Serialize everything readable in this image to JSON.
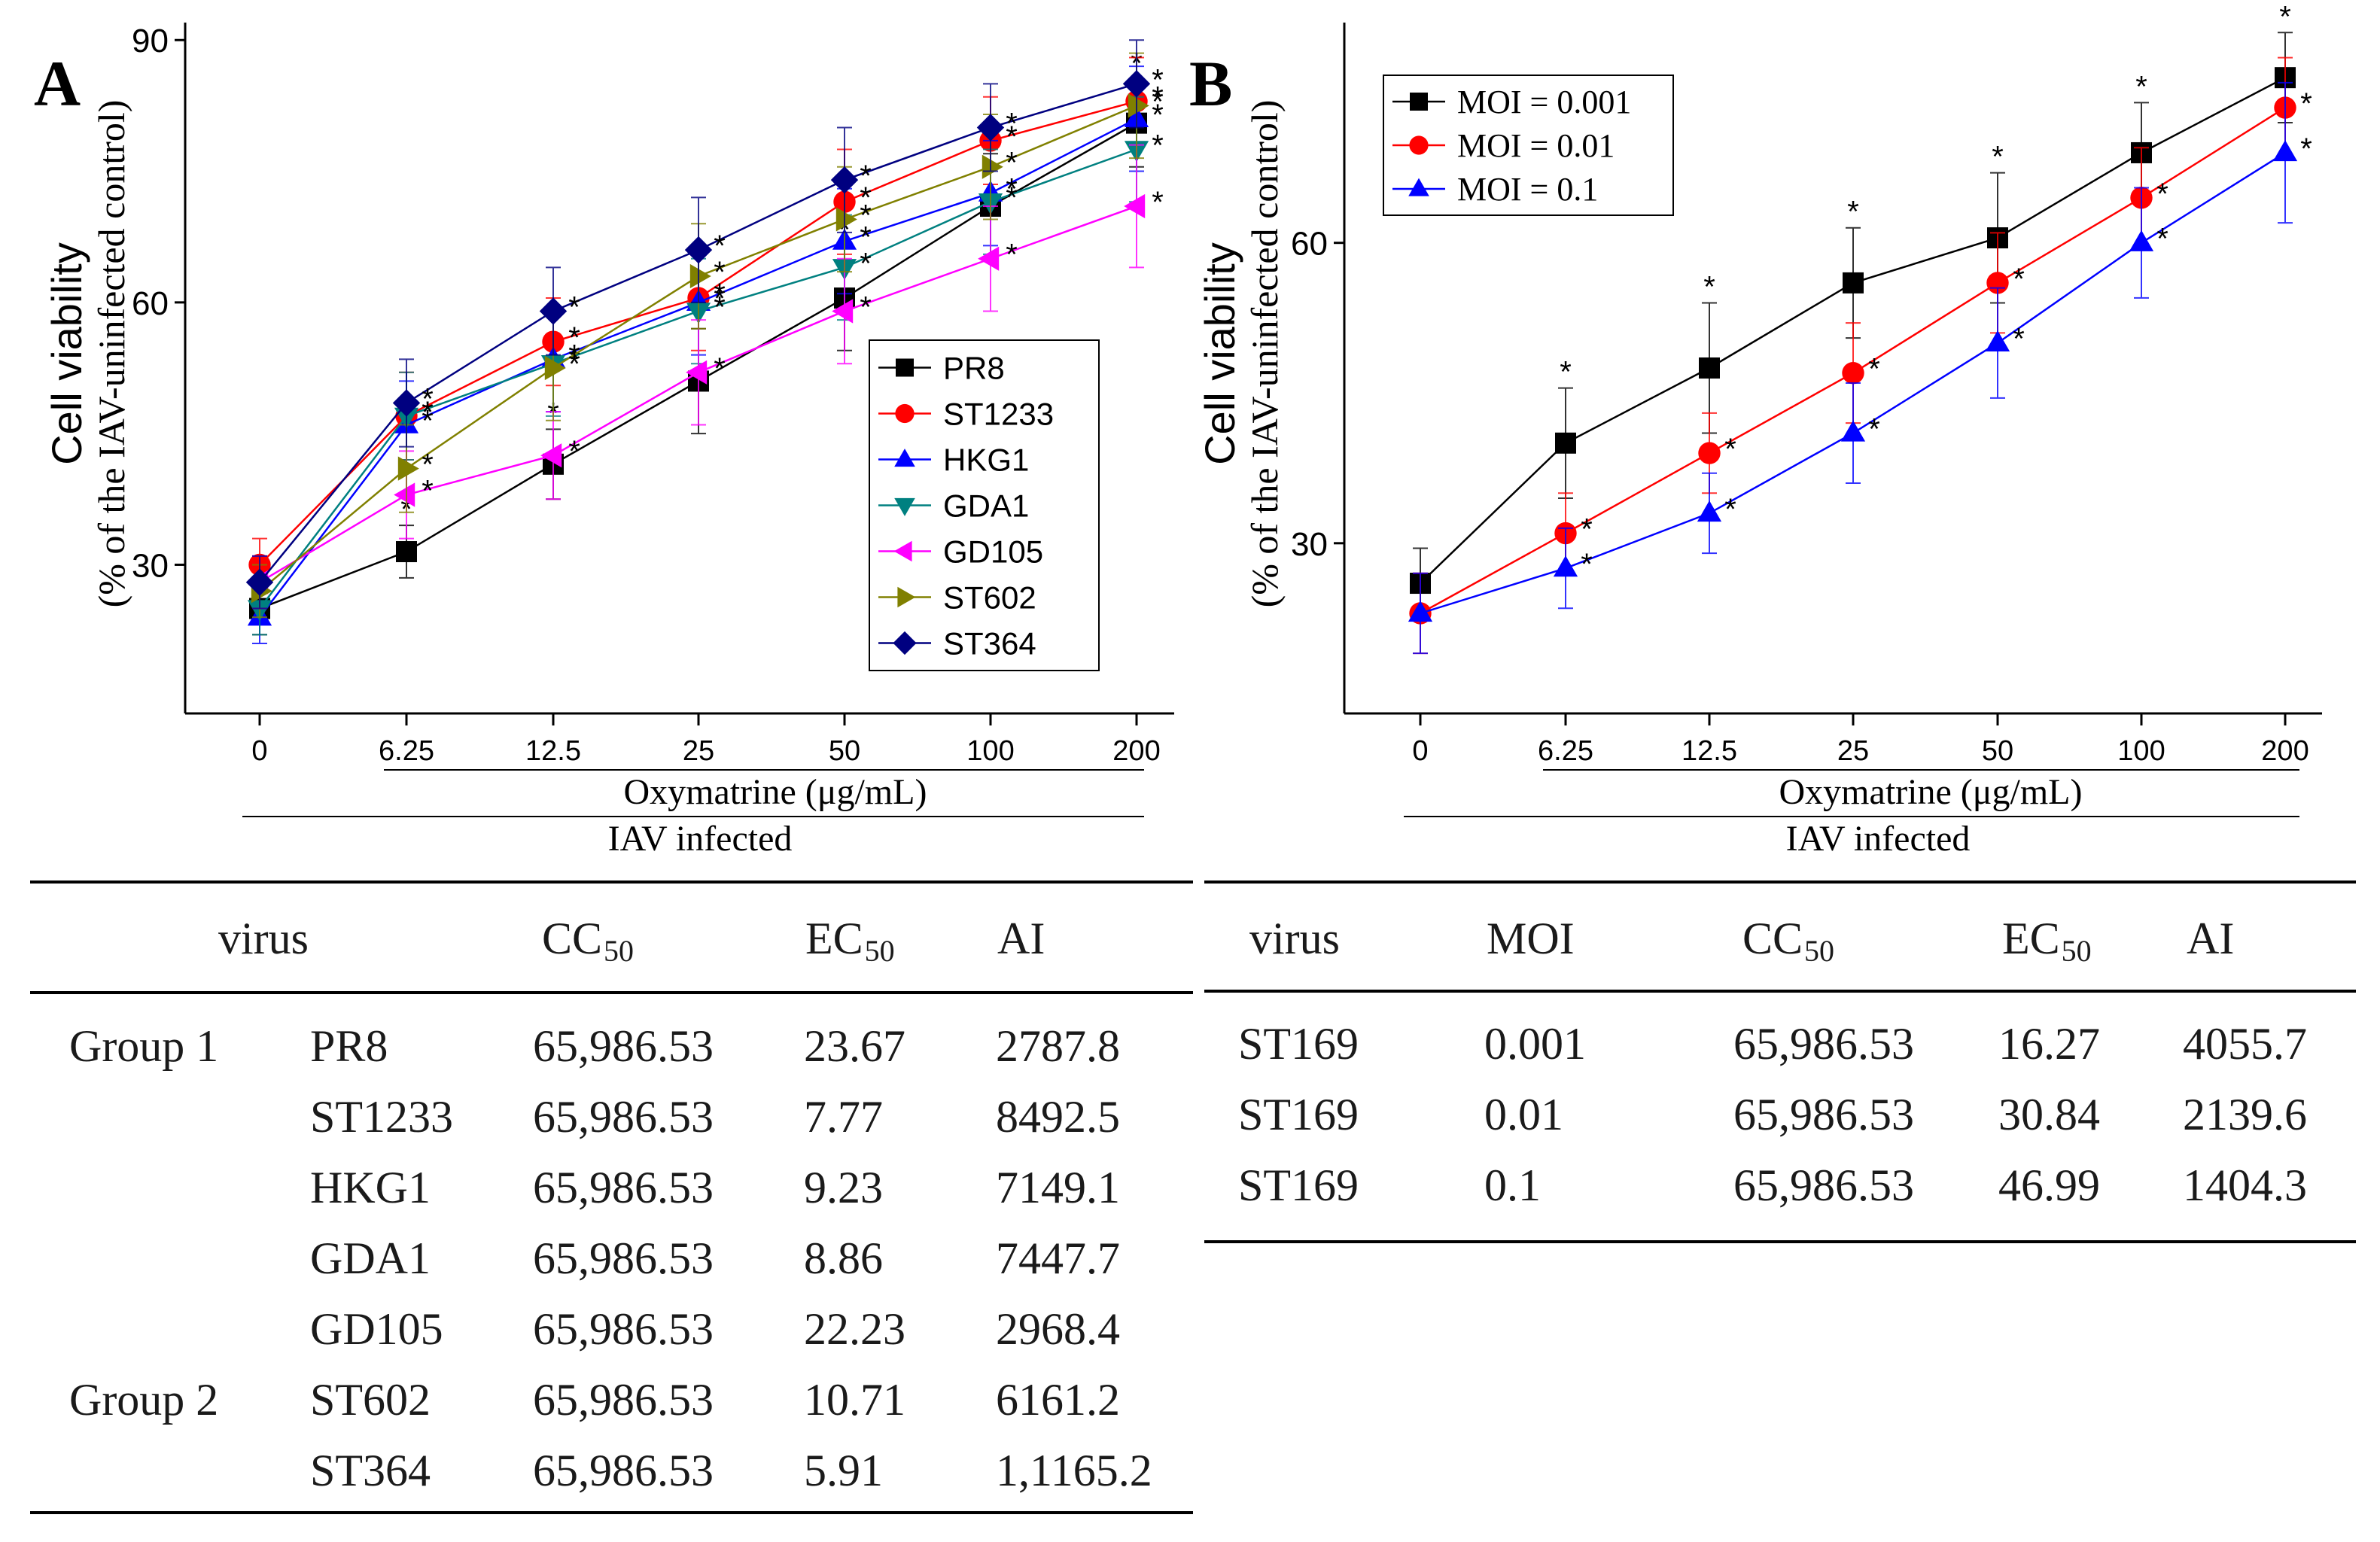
{
  "colors": {
    "black": "#000000",
    "red": "#ff0000",
    "blue": "#0000ff",
    "teal": "#008080",
    "magenta": "#ff00ff",
    "olive": "#808000",
    "navy": "#000080"
  },
  "panels": {
    "A": {
      "label": "A",
      "y_ticks": [
        "30",
        "60",
        "90"
      ],
      "x_ticks": [
        "0",
        "6.25",
        "12.5",
        "25",
        "50",
        "100",
        "200"
      ],
      "bracket_label": "Oxymatrine (μg/mL)",
      "infected_label": "IAV infected"
    },
    "B": {
      "label": "B",
      "y_ticks": [
        "30",
        "60"
      ],
      "x_ticks": [
        "0",
        "6.25",
        "12.5",
        "25",
        "50",
        "100",
        "200"
      ],
      "bracket_label": "Oxymatrine (μg/mL)",
      "infected_label": "IAV infected"
    }
  },
  "chart_data": [
    {
      "type": "line",
      "panel": "A",
      "title": "",
      "ylabel": "Cell viability",
      "ylabel2": "(% of the IAV-uninfected control)",
      "xlabel": "Oxymatrine (μg/mL)",
      "categories": [
        "0",
        "6.25",
        "12.5",
        "25",
        "50",
        "100",
        "200"
      ],
      "ylim": [
        13,
        92
      ],
      "legend_position": "center-right",
      "series": [
        {
          "name": "PR8",
          "color": "#000000",
          "marker": "square",
          "values": [
            25,
            31.5,
            41.5,
            51,
            60.5,
            71,
            80.5
          ],
          "error": [
            3,
            3,
            4,
            6,
            6,
            6,
            5
          ]
        },
        {
          "name": "ST1233",
          "color": "#ff0000",
          "marker": "circle",
          "values": [
            30,
            47,
            55.5,
            60.5,
            71.5,
            78.5,
            83
          ],
          "error": [
            3,
            5,
            5,
            6,
            6,
            5,
            5
          ]
        },
        {
          "name": "HKG1",
          "color": "#0000ff",
          "marker": "triangle-up",
          "values": [
            24,
            46,
            53.5,
            60,
            67,
            72.5,
            81
          ],
          "error": [
            3,
            5,
            6,
            6,
            6,
            6,
            6
          ]
        },
        {
          "name": "GDA1",
          "color": "#008080",
          "marker": "triangle-down",
          "values": [
            25,
            47,
            53,
            59,
            64,
            71.5,
            77.5
          ],
          "error": [
            3,
            5,
            6,
            6,
            6,
            6,
            6
          ]
        },
        {
          "name": "GD105",
          "color": "#ff00ff",
          "marker": "triangle-left",
          "values": [
            28,
            38,
            42.5,
            52,
            59,
            65,
            71
          ],
          "error": [
            3,
            5,
            5,
            6,
            6,
            6,
            7
          ]
        },
        {
          "name": "ST602",
          "color": "#808000",
          "marker": "triangle-right",
          "values": [
            27,
            41,
            52.5,
            63,
            69.5,
            75.5,
            82.5
          ],
          "error": [
            3,
            5,
            6,
            6,
            6,
            6,
            6
          ]
        },
        {
          "name": "ST364",
          "color": "#000080",
          "marker": "diamond",
          "values": [
            28,
            48.5,
            59,
            66,
            74,
            80,
            85
          ],
          "error": [
            3,
            5,
            5,
            6,
            6,
            5,
            5
          ]
        }
      ],
      "significance_marks": "*"
    },
    {
      "type": "line",
      "panel": "B",
      "title": "",
      "ylabel": "Cell viability",
      "ylabel2": "(% of the IAV-uninfected control)",
      "xlabel": "Oxymatrine (μg/mL)",
      "categories": [
        "0",
        "6.25",
        "12.5",
        "25",
        "50",
        "100",
        "200"
      ],
      "ylim": [
        13,
        82
      ],
      "legend_position": "top-left",
      "series": [
        {
          "name": "MOI = 0.001",
          "color": "#000000",
          "marker": "square",
          "values": [
            26,
            40,
            47.5,
            56,
            60.5,
            69,
            76.5
          ],
          "error": [
            3.5,
            5.5,
            6.5,
            5.5,
            6.5,
            5,
            4.5
          ]
        },
        {
          "name": "MOI = 0.01",
          "color": "#ff0000",
          "marker": "circle",
          "values": [
            23,
            31,
            39,
            47,
            56,
            64.5,
            73.5
          ],
          "error": [
            4,
            4,
            4,
            5,
            5,
            5,
            5
          ]
        },
        {
          "name": "MOI = 0.1",
          "color": "#0000ff",
          "marker": "triangle-up",
          "values": [
            23,
            27.5,
            33,
            41,
            50,
            60,
            69
          ],
          "error": [
            4,
            4,
            4,
            5,
            5.5,
            5.5,
            7
          ]
        }
      ],
      "significance_marks": "*"
    }
  ],
  "table_a": {
    "headers": {
      "virus": "virus",
      "cc": "CC",
      "cc_sub": "50",
      "ec": "EC",
      "ec_sub": "50",
      "ai": "AI"
    },
    "rows": [
      {
        "group": "Group 1",
        "virus": "PR8",
        "cc": "65,986.53",
        "ec": "23.67",
        "ai": "2787.8"
      },
      {
        "group": "",
        "virus": "ST1233",
        "cc": "65,986.53",
        "ec": "7.77",
        "ai": "8492.5"
      },
      {
        "group": "",
        "virus": "HKG1",
        "cc": "65,986.53",
        "ec": "9.23",
        "ai": "7149.1"
      },
      {
        "group": "",
        "virus": "GDA1",
        "cc": "65,986.53",
        "ec": "8.86",
        "ai": "7447.7"
      },
      {
        "group": "",
        "virus": "GD105",
        "cc": "65,986.53",
        "ec": "22.23",
        "ai": "2968.4"
      },
      {
        "group": "Group 2",
        "virus": "ST602",
        "cc": "65,986.53",
        "ec": "10.71",
        "ai": "6161.2"
      },
      {
        "group": "",
        "virus": "ST364",
        "cc": "65,986.53",
        "ec": "5.91",
        "ai": "1,1165.2"
      }
    ]
  },
  "table_b": {
    "headers": {
      "virus": "virus",
      "moi": "MOI",
      "cc": "CC",
      "cc_sub": "50",
      "ec": "EC",
      "ec_sub": "50",
      "ai": "AI"
    },
    "rows": [
      {
        "virus": "ST169",
        "moi": "0.001",
        "cc": "65,986.53",
        "ec": "16.27",
        "ai": "4055.7"
      },
      {
        "virus": "ST169",
        "moi": "0.01",
        "cc": "65,986.53",
        "ec": "30.84",
        "ai": "2139.6"
      },
      {
        "virus": "ST169",
        "moi": "0.1",
        "cc": "65,986.53",
        "ec": "46.99",
        "ai": "1404.3"
      }
    ]
  }
}
